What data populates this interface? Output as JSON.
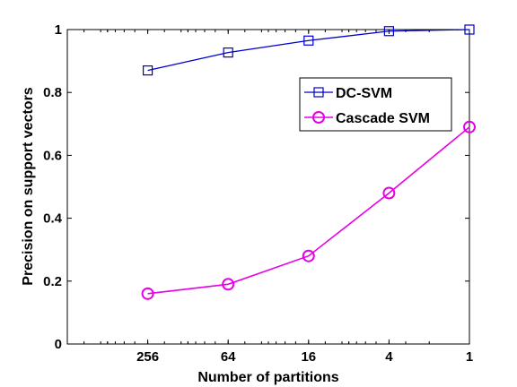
{
  "chart_data": {
    "type": "line",
    "title": "",
    "xlabel": "Number of partitions",
    "ylabel": "Precision on support vectors",
    "x_scale": "log",
    "x_reversed": true,
    "xlim": [
      1024,
      1
    ],
    "ylim": [
      0,
      1
    ],
    "x": [
      256,
      64,
      16,
      4,
      1
    ],
    "xticks": [
      256,
      64,
      16,
      4,
      1
    ],
    "yticks": [
      0,
      0.2,
      0.4,
      0.6,
      0.8,
      1
    ],
    "legend_position": "upper-right",
    "grid": false,
    "series": [
      {
        "name": "DC-SVM",
        "color": "#0000cc",
        "marker": "square",
        "values": [
          0.87,
          0.927,
          0.965,
          0.995,
          1.0
        ]
      },
      {
        "name": "Cascade SVM",
        "color": "#e600e6",
        "marker": "circle",
        "values": [
          0.16,
          0.19,
          0.28,
          0.48,
          0.69
        ]
      }
    ]
  }
}
